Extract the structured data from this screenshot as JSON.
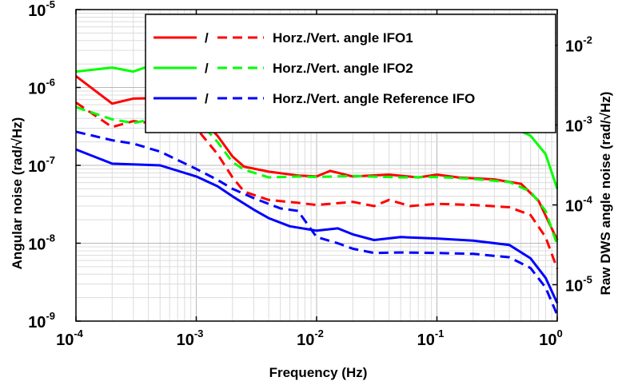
{
  "chart_data": {
    "type": "line",
    "xlabel": "Frequency (Hz)",
    "ylabel": "Angular noise (rad/√Hz)",
    "ylabel_right": "Raw DWS angle noise (rad/√Hz)",
    "xscale": "log",
    "yscale": "log",
    "xlim": [
      0.0001,
      1
    ],
    "ylim": [
      1e-09,
      1e-05
    ],
    "ylim_right": [
      3.5e-06,
      0.028
    ],
    "grid": true,
    "legend_position": "top-right",
    "x_ticks": [
      {
        "value": 0.0001,
        "base": "10",
        "exp": "-4"
      },
      {
        "value": 0.001,
        "base": "10",
        "exp": "-3"
      },
      {
        "value": 0.01,
        "base": "10",
        "exp": "-2"
      },
      {
        "value": 0.1,
        "base": "10",
        "exp": "-1"
      },
      {
        "value": 1,
        "base": "10",
        "exp": "0"
      }
    ],
    "y_ticks": [
      {
        "value": 1e-09,
        "base": "10",
        "exp": "-9"
      },
      {
        "value": 1e-08,
        "base": "10",
        "exp": "-8"
      },
      {
        "value": 1e-07,
        "base": "10",
        "exp": "-7"
      },
      {
        "value": 1e-06,
        "base": "10",
        "exp": "-6"
      },
      {
        "value": 1e-05,
        "base": "10",
        "exp": "-5"
      }
    ],
    "y_ticks_right": [
      {
        "value": 1e-05,
        "base": "10",
        "exp": "-5"
      },
      {
        "value": 0.0001,
        "base": "10",
        "exp": "-4"
      },
      {
        "value": 0.001,
        "base": "10",
        "exp": "-3"
      },
      {
        "value": 0.01,
        "base": "10",
        "exp": "-2"
      }
    ],
    "legend": [
      {
        "slash": "/",
        "text": "Horz./Vert. angle IFO1",
        "color": "#ff0000"
      },
      {
        "slash": "/",
        "text": "Horz./Vert. angle IFO2",
        "color": "#00ff00"
      },
      {
        "slash": "/",
        "text": "Horz./Vert. angle Reference IFO",
        "color": "#0000ff"
      }
    ],
    "series": [
      {
        "color": "#ff0000",
        "dashed": false,
        "points": [
          [
            0.0001,
            1.4e-06
          ],
          [
            0.0002,
            6.2e-07
          ],
          [
            0.0003,
            7.2e-07
          ],
          [
            0.0005,
            7.3e-07
          ],
          [
            0.0007,
            6.6e-07
          ],
          [
            0.001,
            4.6e-07
          ],
          [
            0.0015,
            2.4e-07
          ],
          [
            0.002,
            1.3e-07
          ],
          [
            0.0025,
            9.6e-08
          ],
          [
            0.004,
            8.3e-08
          ],
          [
            0.007,
            7.4e-08
          ],
          [
            0.01,
            7.2e-08
          ],
          [
            0.013,
            8.5e-08
          ],
          [
            0.02,
            7.2e-08
          ],
          [
            0.04,
            7.6e-08
          ],
          [
            0.07,
            7e-08
          ],
          [
            0.1,
            7.6e-08
          ],
          [
            0.15,
            7e-08
          ],
          [
            0.3,
            6.6e-08
          ],
          [
            0.5,
            5.8e-08
          ],
          [
            0.7,
            3.5e-08
          ],
          [
            1,
            1.1e-08
          ]
        ]
      },
      {
        "color": "#ff0000",
        "dashed": true,
        "points": [
          [
            0.0001,
            6.4e-07
          ],
          [
            0.0002,
            3.1e-07
          ],
          [
            0.0003,
            3.7e-07
          ],
          [
            0.0005,
            3.4e-07
          ],
          [
            0.0008,
            3.6e-07
          ],
          [
            0.001,
            3e-07
          ],
          [
            0.0015,
            1.4e-07
          ],
          [
            0.002,
            7e-08
          ],
          [
            0.0025,
            4.6e-08
          ],
          [
            0.004,
            3.6e-08
          ],
          [
            0.007,
            3.3e-08
          ],
          [
            0.01,
            3.1e-08
          ],
          [
            0.02,
            3.4e-08
          ],
          [
            0.03,
            3e-08
          ],
          [
            0.04,
            3.6e-08
          ],
          [
            0.06,
            3e-08
          ],
          [
            0.1,
            3.2e-08
          ],
          [
            0.2,
            3.1e-08
          ],
          [
            0.4,
            2.9e-08
          ],
          [
            0.6,
            2.3e-08
          ],
          [
            0.8,
            1.2e-08
          ],
          [
            1,
            4.7e-09
          ]
        ]
      },
      {
        "color": "#00ff00",
        "dashed": false,
        "points": [
          [
            0.0001,
            1.6e-06
          ],
          [
            0.0002,
            1.8e-06
          ],
          [
            0.0003,
            1.6e-06
          ],
          [
            0.0005,
            2.1e-06
          ],
          [
            0.0008,
            2.2e-06
          ],
          [
            0.001,
            2e-06
          ],
          [
            0.0015,
            1.3e-06
          ],
          [
            0.002,
            8.3e-07
          ],
          [
            0.0025,
            5.3e-07
          ],
          [
            0.0035,
            3.2e-07
          ],
          [
            0.005,
            3.4e-07
          ],
          [
            0.007,
            4.1e-07
          ],
          [
            0.01,
            3.5e-07
          ],
          [
            0.02,
            3.5e-07
          ],
          [
            0.05,
            3.5e-07
          ],
          [
            0.1,
            3.6e-07
          ],
          [
            0.2,
            3.5e-07
          ],
          [
            0.4,
            3.2e-07
          ],
          [
            0.6,
            2.4e-07
          ],
          [
            0.8,
            1.4e-07
          ],
          [
            1,
            5e-08
          ]
        ]
      },
      {
        "color": "#00ff00",
        "dashed": true,
        "points": [
          [
            0.0001,
            5.6e-07
          ],
          [
            0.0002,
            3.9e-07
          ],
          [
            0.0003,
            3.5e-07
          ],
          [
            0.0005,
            4.1e-07
          ],
          [
            0.0008,
            4.2e-07
          ],
          [
            0.001,
            4e-07
          ],
          [
            0.0015,
            2e-07
          ],
          [
            0.002,
            1.1e-07
          ],
          [
            0.0025,
            8.8e-08
          ],
          [
            0.004,
            7e-08
          ],
          [
            0.007,
            7.2e-08
          ],
          [
            0.01,
            7.1e-08
          ],
          [
            0.02,
            7.3e-08
          ],
          [
            0.05,
            7e-08
          ],
          [
            0.1,
            7.1e-08
          ],
          [
            0.2,
            6.7e-08
          ],
          [
            0.4,
            6.1e-08
          ],
          [
            0.6,
            4.6e-08
          ],
          [
            0.8,
            2.6e-08
          ],
          [
            1,
            9.5e-09
          ]
        ]
      },
      {
        "color": "#0000ff",
        "dashed": false,
        "points": [
          [
            0.0001,
            1.6e-07
          ],
          [
            0.0002,
            1.05e-07
          ],
          [
            0.0005,
            1e-07
          ],
          [
            0.001,
            7.2e-08
          ],
          [
            0.0015,
            5.4e-08
          ],
          [
            0.002,
            4e-08
          ],
          [
            0.003,
            2.7e-08
          ],
          [
            0.004,
            2.1e-08
          ],
          [
            0.006,
            1.65e-08
          ],
          [
            0.01,
            1.45e-08
          ],
          [
            0.015,
            1.55e-08
          ],
          [
            0.02,
            1.3e-08
          ],
          [
            0.03,
            1.1e-08
          ],
          [
            0.05,
            1.2e-08
          ],
          [
            0.1,
            1.15e-08
          ],
          [
            0.2,
            1.08e-08
          ],
          [
            0.4,
            9.5e-09
          ],
          [
            0.6,
            6.4e-09
          ],
          [
            0.8,
            3.6e-09
          ],
          [
            1,
            1.7e-09
          ]
        ]
      },
      {
        "color": "#0000ff",
        "dashed": true,
        "points": [
          [
            0.0001,
            2.7e-07
          ],
          [
            0.0002,
            2.1e-07
          ],
          [
            0.0003,
            1.9e-07
          ],
          [
            0.0005,
            1.5e-07
          ],
          [
            0.001,
            9e-08
          ],
          [
            0.0015,
            6.5e-08
          ],
          [
            0.002,
            5e-08
          ],
          [
            0.003,
            3.8e-08
          ],
          [
            0.005,
            2.8e-08
          ],
          [
            0.007,
            2.6e-08
          ],
          [
            0.01,
            1.2e-08
          ],
          [
            0.015,
            1e-08
          ],
          [
            0.02,
            8.5e-09
          ],
          [
            0.03,
            7.5e-09
          ],
          [
            0.05,
            7.6e-09
          ],
          [
            0.1,
            7.5e-09
          ],
          [
            0.2,
            7.3e-09
          ],
          [
            0.4,
            6.6e-09
          ],
          [
            0.6,
            4.8e-09
          ],
          [
            0.8,
            2.7e-09
          ],
          [
            1,
            1.2e-09
          ]
        ]
      }
    ]
  }
}
